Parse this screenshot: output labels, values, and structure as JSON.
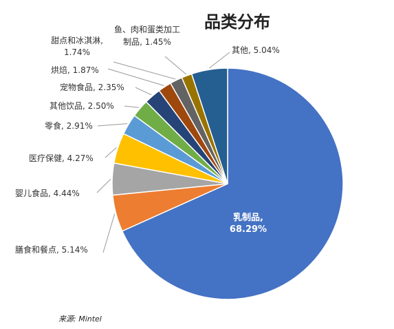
{
  "title": "品类分布",
  "source": "来源: Mintel",
  "chart_data": {
    "type": "pie",
    "title": "品类分布",
    "slices": [
      {
        "label": "乳制品,",
        "value": 68.29,
        "value_text": "68.29%",
        "color": "#4472C4"
      },
      {
        "label": "膳食和餐点,",
        "value": 5.14,
        "value_text": "5.14%",
        "color": "#ED7D31"
      },
      {
        "label": "婴儿食品,",
        "value": 4.44,
        "value_text": "4.44%",
        "color": "#A5A5A5"
      },
      {
        "label": "医疗保健,",
        "value": 4.27,
        "value_text": "4.27%",
        "color": "#FFC000"
      },
      {
        "label": "零食,",
        "value": 2.91,
        "value_text": "2.91%",
        "color": "#5B9BD5"
      },
      {
        "label": "其他饮品,",
        "value": 2.5,
        "value_text": "2.50%",
        "color": "#70AD47"
      },
      {
        "label": "宠物食品,",
        "value": 2.35,
        "value_text": "2.35%",
        "color": "#264478"
      },
      {
        "label": "烘焙,",
        "value": 1.87,
        "value_text": "1.87%",
        "color": "#9E480E"
      },
      {
        "label": "甜点和冰淇淋,",
        "value": 1.74,
        "value_text": "1.74%",
        "color": "#636363"
      },
      {
        "label": "鱼、肉和蛋类加工制品,",
        "value": 1.45,
        "value_text": "1.45%",
        "color": "#997300"
      },
      {
        "label": "其他,",
        "value": 5.04,
        "value_text": "5.04%",
        "color": "#255E91"
      }
    ]
  }
}
